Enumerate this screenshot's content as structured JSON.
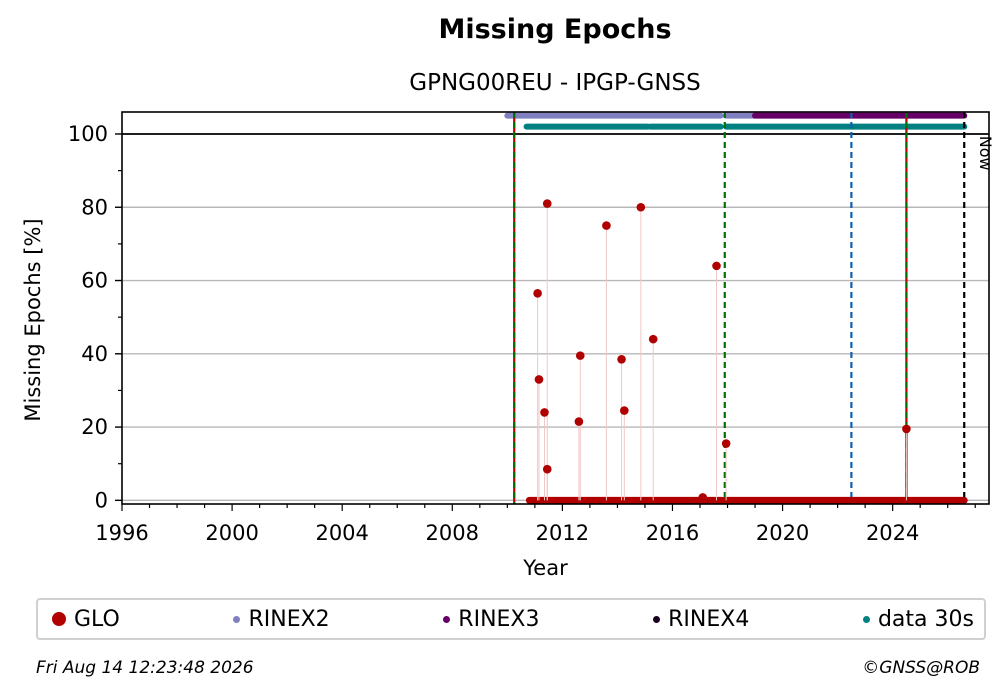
{
  "chart_data": {
    "type": "scatter",
    "title": "Missing Epochs",
    "subtitle": "GPNG00REU - IPGP-GNSS",
    "xlabel": "Year",
    "ylabel": "Missing Epochs [%]",
    "xlim": [
      1996,
      2027.5
    ],
    "ylim": [
      -1,
      106
    ],
    "xticks": [
      1996,
      2000,
      2004,
      2008,
      2012,
      2016,
      2020,
      2024
    ],
    "yticks": [
      0,
      20,
      40,
      60,
      80,
      100
    ],
    "grid": "horizontal",
    "now_label": "Now",
    "now_year": 2026.6,
    "vertical_lines": [
      {
        "x": 2010.25,
        "color": "#c00000",
        "style": "solid"
      },
      {
        "x": 2010.25,
        "color": "#007000",
        "style": "dashed"
      },
      {
        "x": 2017.9,
        "color": "#007000",
        "style": "dashed"
      },
      {
        "x": 2022.5,
        "color": "#1060b0",
        "style": "dashed"
      },
      {
        "x": 2024.5,
        "color": "#c00000",
        "style": "solid"
      },
      {
        "x": 2024.5,
        "color": "#007000",
        "style": "dashed"
      },
      {
        "x": 2026.6,
        "color": "#000000",
        "style": "dashed"
      }
    ],
    "availability_bars": [
      {
        "series": "RINEX2",
        "y": 105,
        "color": "#8080c0",
        "ranges": [
          [
            2010.0,
            2017.75
          ],
          [
            2017.95,
            2019.0
          ]
        ]
      },
      {
        "series": "RINEX3",
        "y": 105,
        "color": "#660066",
        "ranges": [
          [
            2019.0,
            2026.6
          ]
        ]
      },
      {
        "series": "data 30s",
        "y": 102,
        "color": "#008080",
        "ranges": [
          [
            2010.7,
            2015.1
          ],
          [
            2015.2,
            2017.75
          ],
          [
            2017.95,
            2026.6
          ]
        ]
      }
    ],
    "zero_ranges": [
      [
        2010.8,
        2017.8
      ],
      [
        2017.95,
        2026.6
      ]
    ],
    "series": [
      {
        "name": "GLO",
        "color": "#b00000",
        "points": [
          [
            2011.1,
            56.5
          ],
          [
            2011.15,
            33
          ],
          [
            2011.35,
            24
          ],
          [
            2011.45,
            81
          ],
          [
            2011.45,
            8.5
          ],
          [
            2012.6,
            21.5
          ],
          [
            2012.65,
            39.5
          ],
          [
            2013.6,
            75
          ],
          [
            2014.15,
            38.5
          ],
          [
            2014.25,
            24.5
          ],
          [
            2014.85,
            80
          ],
          [
            2015.3,
            44
          ],
          [
            2017.1,
            0.8
          ],
          [
            2017.6,
            64
          ],
          [
            2017.95,
            15.5
          ],
          [
            2024.5,
            19.5
          ]
        ]
      }
    ],
    "legend": [
      {
        "label": "GLO",
        "color": "#b00000",
        "size": 14
      },
      {
        "label": "RINEX2",
        "color": "#8080c0",
        "size": 7
      },
      {
        "label": "RINEX3",
        "color": "#660066",
        "size": 7
      },
      {
        "label": "RINEX4",
        "color": "#1a0020",
        "size": 7
      },
      {
        "label": "data 30s",
        "color": "#008080",
        "size": 7
      }
    ]
  },
  "footer": {
    "timestamp": "Fri Aug 14 12:23:48 2026",
    "copyright": "©GNSS@ROB"
  }
}
